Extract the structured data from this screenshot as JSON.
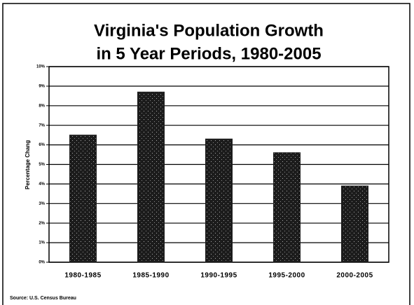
{
  "chart_data": {
    "type": "bar",
    "title": [
      "Virginia's Population Growth",
      "in 5 Year Periods, 1980-2005"
    ],
    "y_label": "Percentage Chang",
    "source": "Source: U.S. Census Bureau",
    "categories": [
      "1980-1985",
      "1985-1990",
      "1990-1995",
      "1995-2000",
      "2000-2005"
    ],
    "values": [
      6.5,
      8.7,
      6.3,
      5.6,
      3.9
    ],
    "color": "#1c1c1c",
    "ylim": [
      0,
      10
    ],
    "yticks": [
      {
        "value": 0,
        "label": "0%"
      },
      {
        "value": 1,
        "label": "1%"
      },
      {
        "value": 2,
        "label": "2%"
      },
      {
        "value": 3,
        "label": "3%"
      },
      {
        "value": 4,
        "label": "4%"
      },
      {
        "value": 5,
        "label": "5%"
      },
      {
        "value": 6,
        "label": "6%"
      },
      {
        "value": 7,
        "label": "7%"
      },
      {
        "value": 8,
        "label": "8%"
      },
      {
        "value": 9,
        "label": "9%"
      },
      {
        "value": 10,
        "label": "10%"
      }
    ],
    "grid": true
  }
}
